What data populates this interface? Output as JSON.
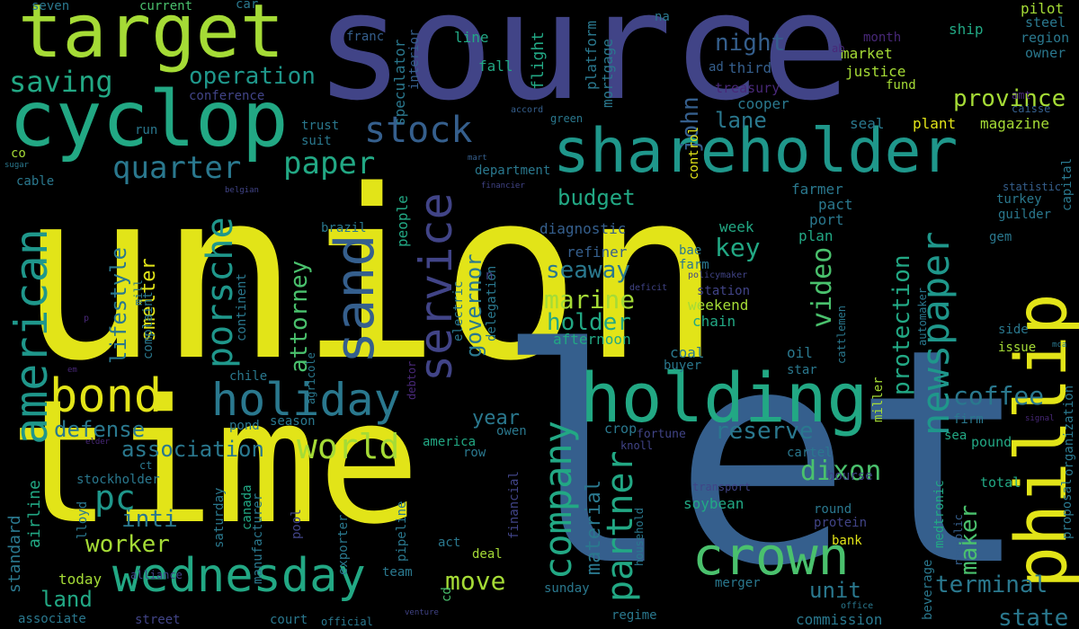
{
  "words": [
    "union",
    "let",
    "time",
    "source",
    "target",
    "cyclop",
    "shareholder",
    "holding",
    "phillip",
    "crown",
    "wednesday",
    "bond",
    "holiday",
    "american",
    "sand",
    "service",
    "porsche",
    "stock",
    "paper",
    "quarter",
    "saving",
    "operation",
    "newspaper",
    "company",
    "partner",
    "world",
    "protection",
    "video",
    "dixon",
    "pc",
    "province",
    "coffee",
    "reserve",
    "night",
    "lane",
    "john",
    "key",
    "budget",
    "seaway",
    "marine",
    "holder",
    "governor",
    "attorney",
    "lifestyle",
    "smelter",
    "association",
    "defense",
    "inti",
    "worker",
    "land",
    "move",
    "terminal",
    "maker",
    "unit",
    "state",
    "year",
    "material",
    "afternoon",
    "week",
    "weekend",
    "chain",
    "refiner",
    "diagnostic",
    "department",
    "people",
    "flight",
    "platform",
    "mortgage",
    "speculator",
    "interior",
    "line",
    "fall",
    "third",
    "treasury",
    "cooper",
    "market",
    "justice",
    "fund",
    "month",
    "magazine",
    "plant",
    "seal",
    "ship",
    "steel",
    "region",
    "owner",
    "pilot",
    "na",
    "car",
    "current",
    "seven",
    "franc",
    "conference",
    "trust",
    "suit",
    "run",
    "co",
    "sugar",
    "cable",
    "airline",
    "standard",
    "stockholder",
    "lloyd",
    "canada",
    "saturday",
    "manufacturer",
    "pool",
    "exporter",
    "pipeline",
    "act",
    "deal",
    "today",
    "alliance",
    "associate",
    "street",
    "court",
    "official",
    "team",
    "cd",
    "financial",
    "household",
    "regime",
    "sunday",
    "merger",
    "commission",
    "bank",
    "beverage",
    "republic",
    "medtronic",
    "transport",
    "soybean",
    "round",
    "protein",
    "bourse",
    "cartel",
    "firm",
    "sea",
    "pound",
    "total",
    "proposal",
    "organization",
    "gem",
    "guilder",
    "turkey",
    "capital",
    "statistic",
    "side",
    "issue",
    "oil",
    "star",
    "cattlemen",
    "miller",
    "signal",
    "mca",
    "automaker",
    "buyer",
    "coal",
    "farm",
    "station",
    "bae",
    "electric",
    "delegation",
    "debtor",
    "agricole",
    "continent",
    "complaint",
    "mill",
    "brazil",
    "chile",
    "america",
    "row",
    "crop",
    "fortune",
    "knoll",
    "owen",
    "season",
    "pond",
    "elder",
    "venture",
    "office",
    "ct",
    "em",
    "p",
    "financier",
    "mart",
    "n",
    "green",
    "accord",
    "amt",
    "caisse",
    "ab",
    "ad",
    "belgian",
    "deficit",
    "policymaker",
    "control",
    "farmer",
    "pact",
    "port",
    "plan"
  ],
  "colors": {
    "yellow": "#e2e418",
    "lime": "#a5db36",
    "green": "#4ac16d",
    "teal": "#22a884",
    "cyan": "#1f978b",
    "blue": "#2a788e",
    "steel": "#355f8d",
    "indigo": "#414487",
    "purple": "#482878",
    "dark": "#440154",
    "background": "#000000"
  }
}
